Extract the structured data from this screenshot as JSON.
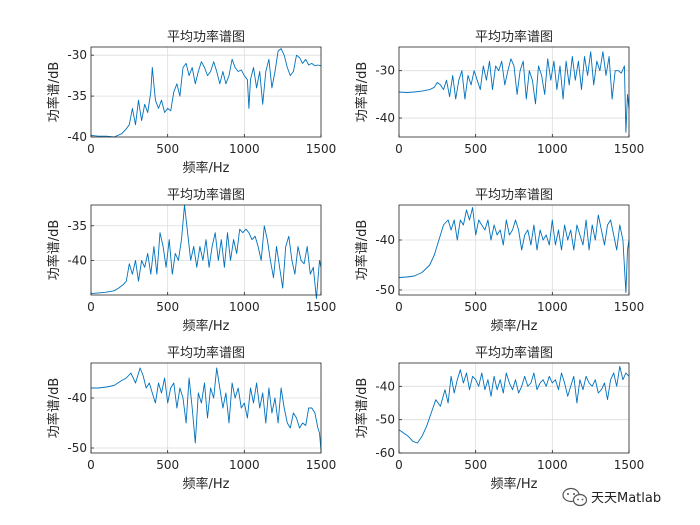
{
  "colors": {
    "line": "#0072BD",
    "grid": "#dcdcdc",
    "axis": "#262626",
    "background": "#ffffff"
  },
  "watermark": {
    "text": "天天Matlab",
    "icon": "wechat-icon"
  },
  "chart_data": [
    {
      "type": "line",
      "title": "平均功率谱图",
      "xlabel": "频率/Hz",
      "ylabel": "功率谱/dB",
      "xlim": [
        0,
        1500
      ],
      "ylim": [
        -40,
        -29
      ],
      "xticks": [
        0,
        500,
        1000,
        1500
      ],
      "yticks": [
        -40,
        -35,
        -30
      ],
      "grid": true,
      "series": [
        {
          "x": [
            0,
            50,
            100,
            150,
            200,
            230,
            250,
            270,
            290,
            310,
            330,
            350,
            370,
            390,
            400,
            420,
            440,
            460,
            480,
            500,
            520,
            540,
            560,
            580,
            600,
            620,
            640,
            660,
            680,
            700,
            720,
            740,
            760,
            780,
            800,
            820,
            840,
            860,
            880,
            900,
            920,
            940,
            960,
            980,
            1000,
            1020,
            1030,
            1040,
            1060,
            1080,
            1100,
            1120,
            1140,
            1160,
            1180,
            1200,
            1220,
            1240,
            1260,
            1280,
            1300,
            1320,
            1340,
            1360,
            1380,
            1400,
            1420,
            1440,
            1460,
            1480,
            1500
          ],
          "y": [
            -39.8,
            -39.9,
            -39.9,
            -40,
            -39.6,
            -39.0,
            -38.5,
            -36.5,
            -38.5,
            -35.5,
            -38,
            -36,
            -37,
            -34.5,
            -31.5,
            -35.5,
            -36.5,
            -35.5,
            -37,
            -36.5,
            -36.8,
            -34.5,
            -33.5,
            -35,
            -31.5,
            -31,
            -32.5,
            -31.5,
            -33.5,
            -32,
            -30.8,
            -31.5,
            -32.5,
            -32,
            -30.8,
            -32,
            -33.5,
            -32,
            -33.5,
            -32.5,
            -30.5,
            -31.5,
            -32,
            -31.8,
            -32.5,
            -33,
            -36.5,
            -33,
            -31.5,
            -34,
            -32,
            -36,
            -32,
            -30.5,
            -34,
            -32,
            -29.5,
            -29.2,
            -30,
            -31.5,
            -32.5,
            -32,
            -30,
            -30.3,
            -31,
            -30.5,
            -31.2,
            -31,
            -31.3,
            -31.2,
            -31.3
          ]
        }
      ]
    },
    {
      "type": "line",
      "title": "平均功率谱图",
      "xlabel": "",
      "ylabel": "功率谱/dB",
      "xlim": [
        0,
        1500
      ],
      "ylim": [
        -44,
        -25
      ],
      "xticks": [
        0,
        500,
        1000,
        1500
      ],
      "yticks": [
        -40,
        -30
      ],
      "grid": true,
      "series": [
        {
          "x": [
            0,
            50,
            100,
            150,
            200,
            230,
            250,
            270,
            290,
            310,
            330,
            350,
            370,
            390,
            410,
            430,
            450,
            470,
            490,
            510,
            530,
            550,
            570,
            590,
            610,
            630,
            650,
            670,
            690,
            710,
            730,
            750,
            770,
            790,
            810,
            830,
            850,
            870,
            890,
            910,
            930,
            950,
            970,
            990,
            1010,
            1030,
            1050,
            1070,
            1090,
            1110,
            1130,
            1150,
            1170,
            1190,
            1210,
            1230,
            1250,
            1270,
            1290,
            1310,
            1330,
            1350,
            1370,
            1390,
            1410,
            1430,
            1450,
            1470,
            1480,
            1490,
            1500
          ],
          "y": [
            -34.5,
            -34.6,
            -34.5,
            -34.3,
            -34,
            -33.5,
            -32.5,
            -33,
            -34,
            -32,
            -35.5,
            -31,
            -36,
            -32,
            -30,
            -36,
            -31,
            -33,
            -30,
            -32,
            -34,
            -29,
            -32,
            -28,
            -34,
            -29,
            -30,
            -28,
            -33,
            -30,
            -27.5,
            -29,
            -35,
            -30,
            -28,
            -36,
            -30,
            -32,
            -37,
            -29,
            -31,
            -35,
            -27.5,
            -32,
            -28,
            -34,
            -29,
            -36,
            -28,
            -33,
            -27,
            -32,
            -28,
            -34,
            -27,
            -31,
            -26,
            -33,
            -28,
            -30,
            -26,
            -31,
            -27,
            -36,
            -30,
            -30,
            -30.5,
            -29,
            -43,
            -35,
            -38
          ]
        }
      ]
    },
    {
      "type": "line",
      "title": "平均功率谱图",
      "xlabel": "频率/Hz",
      "ylabel": "功率谱/dB",
      "xlim": [
        0,
        1500
      ],
      "ylim": [
        -45,
        -32
      ],
      "xticks": [
        0,
        500,
        1000,
        1500
      ],
      "yticks": [
        -40,
        -35
      ],
      "grid": true,
      "series": [
        {
          "x": [
            0,
            50,
            100,
            150,
            180,
            210,
            230,
            250,
            270,
            290,
            310,
            330,
            350,
            370,
            390,
            410,
            430,
            450,
            470,
            490,
            510,
            530,
            550,
            570,
            590,
            610,
            630,
            650,
            670,
            690,
            710,
            730,
            750,
            770,
            790,
            810,
            830,
            850,
            870,
            890,
            910,
            930,
            950,
            970,
            990,
            1010,
            1030,
            1050,
            1070,
            1090,
            1110,
            1130,
            1150,
            1170,
            1190,
            1210,
            1230,
            1250,
            1270,
            1290,
            1310,
            1330,
            1350,
            1370,
            1390,
            1410,
            1430,
            1450,
            1470,
            1490,
            1500
          ],
          "y": [
            -44.8,
            -44.7,
            -44.6,
            -44.4,
            -44,
            -43.5,
            -43,
            -40.5,
            -42,
            -40,
            -43,
            -40,
            -41,
            -39,
            -42,
            -38,
            -42,
            -36,
            -38,
            -41,
            -37,
            -42,
            -39,
            -40,
            -37,
            -32,
            -36,
            -40,
            -38,
            -41,
            -38,
            -40,
            -37,
            -41,
            -38,
            -36,
            -40,
            -37,
            -41,
            -36,
            -40,
            -37,
            -39,
            -35.5,
            -36,
            -35.5,
            -36,
            -37,
            -36.5,
            -38,
            -40,
            -35,
            -37,
            -40,
            -42.5,
            -38,
            -41,
            -44,
            -38,
            -36.5,
            -40,
            -42,
            -38,
            -40,
            -40.5,
            -38,
            -42,
            -41,
            -45.5,
            -40,
            -41
          ]
        }
      ]
    },
    {
      "type": "line",
      "title": "平均功率谱图",
      "xlabel": "频率/Hz",
      "ylabel": "功率谱/dB",
      "xlim": [
        0,
        1500
      ],
      "ylim": [
        -51,
        -33
      ],
      "xticks": [
        0,
        500,
        1000,
        1500
      ],
      "yticks": [
        -50,
        -40
      ],
      "grid": true,
      "series": [
        {
          "x": [
            0,
            50,
            100,
            150,
            200,
            230,
            260,
            290,
            320,
            340,
            360,
            380,
            400,
            420,
            440,
            460,
            480,
            500,
            520,
            540,
            560,
            580,
            600,
            620,
            640,
            660,
            680,
            700,
            720,
            740,
            760,
            780,
            800,
            820,
            840,
            860,
            880,
            900,
            920,
            940,
            960,
            980,
            1000,
            1020,
            1040,
            1060,
            1080,
            1100,
            1120,
            1140,
            1160,
            1180,
            1200,
            1220,
            1240,
            1260,
            1280,
            1300,
            1320,
            1340,
            1360,
            1380,
            1400,
            1420,
            1440,
            1460,
            1480,
            1490,
            1500
          ],
          "y": [
            -47.5,
            -47.4,
            -47.2,
            -46.5,
            -45,
            -43,
            -40,
            -37,
            -36,
            -38,
            -36,
            -40,
            -36,
            -37,
            -34,
            -36,
            -33.5,
            -39,
            -36,
            -37,
            -38,
            -36,
            -40,
            -37,
            -39,
            -38,
            -41,
            -36,
            -39,
            -38,
            -36,
            -38,
            -42,
            -39,
            -38,
            -41,
            -37,
            -42,
            -38,
            -40,
            -39,
            -41,
            -36,
            -41,
            -38,
            -42,
            -37,
            -40,
            -38,
            -42,
            -37,
            -39,
            -41,
            -36,
            -42,
            -37,
            -40,
            -35,
            -38,
            -41,
            -37,
            -36,
            -39,
            -42,
            -37,
            -40,
            -50.5,
            -42,
            -40
          ]
        }
      ]
    },
    {
      "type": "line",
      "title": "平均功率谱图",
      "xlabel": "频率/Hz",
      "ylabel": "功率谱/dB",
      "xlim": [
        0,
        1500
      ],
      "ylim": [
        -51,
        -33
      ],
      "xticks": [
        0,
        500,
        1000,
        1500
      ],
      "yticks": [
        -50,
        -40
      ],
      "grid": true,
      "series": [
        {
          "x": [
            0,
            50,
            100,
            150,
            200,
            230,
            260,
            290,
            320,
            340,
            360,
            380,
            400,
            420,
            440,
            460,
            480,
            500,
            520,
            540,
            560,
            580,
            600,
            620,
            640,
            660,
            680,
            700,
            720,
            740,
            760,
            780,
            800,
            820,
            840,
            860,
            880,
            900,
            920,
            940,
            960,
            980,
            1000,
            1020,
            1040,
            1060,
            1080,
            1100,
            1120,
            1140,
            1160,
            1180,
            1200,
            1220,
            1240,
            1260,
            1280,
            1300,
            1320,
            1340,
            1360,
            1380,
            1400,
            1420,
            1440,
            1460,
            1480,
            1490,
            1500
          ],
          "y": [
            -38,
            -38,
            -37.8,
            -37.5,
            -36.5,
            -36,
            -35,
            -37,
            -34,
            -35.5,
            -38,
            -37,
            -39,
            -41,
            -37,
            -39,
            -36,
            -41,
            -38,
            -37,
            -42,
            -38,
            -40,
            -45,
            -36,
            -42,
            -49,
            -39,
            -41,
            -37,
            -44,
            -38,
            -40,
            -34,
            -38,
            -42,
            -39,
            -45,
            -37,
            -40,
            -38,
            -42,
            -41,
            -44,
            -38,
            -41,
            -37,
            -42,
            -39,
            -45,
            -38,
            -43,
            -40,
            -45,
            -38,
            -42,
            -45,
            -46,
            -43,
            -44,
            -46,
            -45,
            -45.5,
            -42,
            -42,
            -43,
            -46,
            -47,
            -50.5
          ]
        }
      ]
    },
    {
      "type": "line",
      "title": "平均功率谱图",
      "xlabel": "频率/Hz",
      "ylabel": "功率谱/dB",
      "xlim": [
        0,
        1500
      ],
      "ylim": [
        -60,
        -33
      ],
      "xticks": [
        0,
        500,
        1000,
        1500
      ],
      "yticks": [
        -60,
        -50,
        -40
      ],
      "grid": true,
      "series": [
        {
          "x": [
            0,
            30,
            60,
            90,
            120,
            150,
            180,
            210,
            240,
            270,
            300,
            320,
            340,
            360,
            380,
            400,
            420,
            440,
            460,
            480,
            500,
            520,
            540,
            560,
            580,
            600,
            620,
            640,
            660,
            680,
            700,
            720,
            740,
            760,
            780,
            800,
            820,
            840,
            860,
            880,
            900,
            920,
            940,
            960,
            980,
            1000,
            1020,
            1040,
            1060,
            1080,
            1100,
            1120,
            1140,
            1160,
            1180,
            1200,
            1220,
            1240,
            1260,
            1280,
            1300,
            1320,
            1340,
            1360,
            1380,
            1400,
            1420,
            1440,
            1460,
            1480,
            1500
          ],
          "y": [
            -53,
            -54,
            -55,
            -56.5,
            -57,
            -55,
            -52,
            -48,
            -44,
            -46,
            -41,
            -45,
            -37,
            -42,
            -38,
            -35,
            -39,
            -36,
            -41,
            -37,
            -38,
            -40,
            -36,
            -41,
            -38,
            -43,
            -37,
            -41,
            -38,
            -42,
            -36,
            -39,
            -41,
            -38,
            -42,
            -40,
            -37,
            -40,
            -39,
            -36,
            -41,
            -39,
            -38,
            -40,
            -37,
            -39,
            -38,
            -41,
            -36,
            -39,
            -43,
            -40,
            -37,
            -45,
            -38,
            -41,
            -37,
            -39,
            -40,
            -38,
            -42,
            -41,
            -39,
            -44,
            -38,
            -36,
            -40,
            -34,
            -38,
            -36,
            -37
          ]
        }
      ]
    }
  ]
}
